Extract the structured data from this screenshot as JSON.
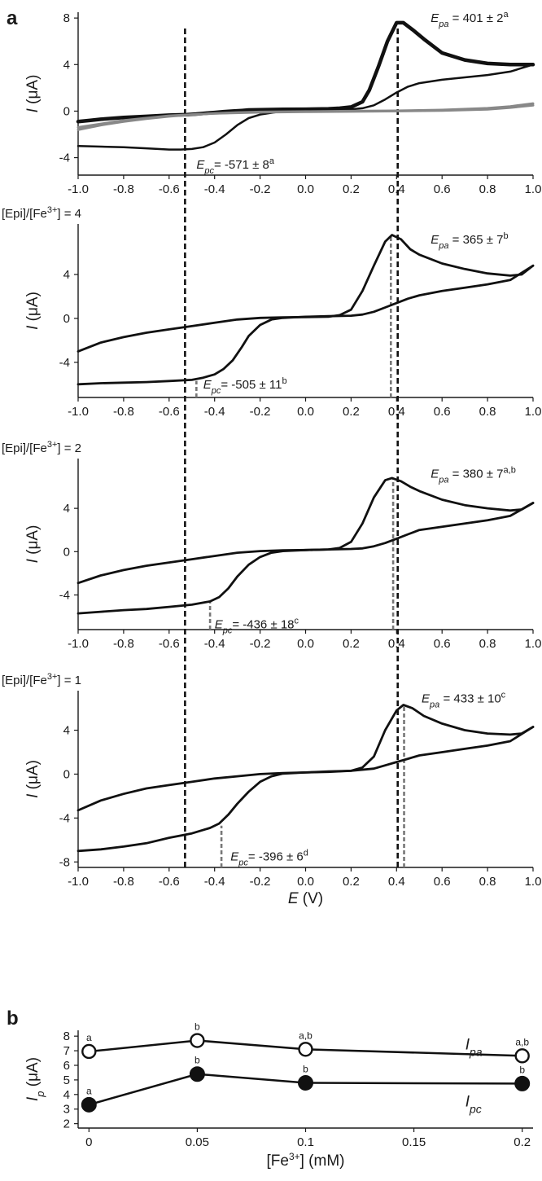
{
  "figure": {
    "panel_a_letter": "a",
    "panel_b_letter": "b"
  },
  "chart_data": [
    {
      "type": "line",
      "panel": "a",
      "condition_label": "",
      "xlabel": "",
      "ylabel_italic": "I",
      "ylabel_unit": "(μA)",
      "xlim": [
        -1.0,
        1.0
      ],
      "ylim": [
        -5.5,
        8.5
      ],
      "yticks": [
        -4,
        0,
        4,
        8
      ],
      "xticks": [
        "-1.0",
        "-0.8",
        "-0.6",
        "-0.4",
        "-0.2",
        "0.0",
        "0.2",
        "0.4",
        "0.6",
        "0.8",
        "1.0"
      ],
      "series": [
        {
          "color": "#111111",
          "width": 4.5,
          "x": [
            -1.0,
            -0.95,
            -0.9,
            -0.8,
            -0.7,
            -0.6,
            -0.52,
            -0.48,
            -0.44,
            -0.4,
            -0.36,
            -0.32,
            -0.28,
            -0.25,
            -0.2,
            -0.1,
            0.0,
            0.1,
            0.15,
            0.2,
            0.25,
            0.28,
            0.32,
            0.36,
            0.4,
            0.43,
            0.47,
            0.52,
            0.6,
            0.7,
            0.8,
            0.9,
            1.0
          ],
          "y": [
            -0.9,
            -0.8,
            -0.7,
            -0.55,
            -0.45,
            -0.35,
            -0.3,
            -0.25,
            -0.18,
            -0.12,
            -0.05,
            0.0,
            0.05,
            0.1,
            0.12,
            0.15,
            0.16,
            0.2,
            0.25,
            0.35,
            0.8,
            1.8,
            3.8,
            6.0,
            7.6,
            7.6,
            7.0,
            6.2,
            5.0,
            4.4,
            4.1,
            4.0,
            4.0
          ]
        },
        {
          "color": "#111111",
          "width": 2.5,
          "x": [
            1.0,
            0.95,
            0.9,
            0.8,
            0.7,
            0.6,
            0.5,
            0.45,
            0.4,
            0.35,
            0.3,
            0.25,
            0.2,
            0.15,
            0.1,
            0.0,
            -0.1,
            -0.2,
            -0.25,
            -0.3,
            -0.35,
            -0.4,
            -0.45,
            -0.5,
            -0.55,
            -0.6,
            -0.7,
            -0.8,
            -0.9,
            -1.0
          ],
          "y": [
            4.0,
            3.7,
            3.4,
            3.1,
            2.9,
            2.7,
            2.4,
            2.1,
            1.6,
            1.0,
            0.5,
            0.25,
            0.15,
            0.1,
            0.08,
            0.05,
            0.0,
            -0.3,
            -0.6,
            -1.2,
            -2.0,
            -2.7,
            -3.1,
            -3.25,
            -3.3,
            -3.3,
            -3.2,
            -3.1,
            -3.05,
            -3.0
          ]
        },
        {
          "color": "#888888",
          "width": 3.0,
          "x": [
            -1.0,
            -0.9,
            -0.8,
            -0.7,
            -0.6,
            -0.5,
            -0.4,
            -0.3,
            -0.2,
            0.0,
            0.2,
            0.4,
            0.6,
            0.8,
            0.9,
            1.0
          ],
          "y": [
            -1.6,
            -1.2,
            -0.9,
            -0.65,
            -0.45,
            -0.3,
            -0.2,
            -0.12,
            -0.07,
            -0.03,
            0.0,
            0.03,
            0.1,
            0.25,
            0.4,
            0.65
          ]
        },
        {
          "color": "#888888",
          "width": 3.0,
          "x": [
            1.0,
            0.9,
            0.8,
            0.6,
            0.4,
            0.2,
            0.0,
            -0.2,
            -0.4,
            -0.6,
            -0.8,
            -1.0
          ],
          "y": [
            0.5,
            0.3,
            0.15,
            0.05,
            0.0,
            -0.03,
            -0.06,
            -0.1,
            -0.2,
            -0.4,
            -0.8,
            -1.4
          ]
        }
      ],
      "annotations": [
        {
          "sym": "E",
          "sub": "pa",
          "text": " = 401 ± 2",
          "sup": "a",
          "x": 0.55,
          "y": 8.0
        },
        {
          "sym": "E",
          "sub": "pc",
          "text": "= -571 ± 8",
          "sup": "a",
          "x": -0.48,
          "y": -4.6
        }
      ],
      "ref_lines": [],
      "ref_line_color": "#777777"
    },
    {
      "type": "line",
      "panel": "a",
      "condition_label": "[Epi]/[Fe3+] = 4",
      "xlabel": "",
      "ylabel_italic": "I",
      "ylabel_unit": "(μA)",
      "xlim": [
        -1.0,
        1.0
      ],
      "ylim": [
        -7.2,
        8.6
      ],
      "yticks": [
        -4,
        0,
        4
      ],
      "xticks": [
        "-1.0",
        "-0.8",
        "-0.6",
        "-0.4",
        "-0.2",
        "0.0",
        "0.2",
        "0.4",
        "0.6",
        "0.8",
        "1.0"
      ],
      "series": [
        {
          "color": "#111111",
          "width": 2.8,
          "x": [
            -1.0,
            -0.9,
            -0.8,
            -0.7,
            -0.6,
            -0.5,
            -0.4,
            -0.3,
            -0.2,
            -0.1,
            0.0,
            0.1,
            0.15,
            0.2,
            0.25,
            0.3,
            0.35,
            0.38,
            0.42,
            0.46,
            0.5,
            0.6,
            0.7,
            0.8,
            0.9,
            0.95,
            1.0
          ],
          "y": [
            -3.0,
            -2.2,
            -1.7,
            -1.3,
            -1.0,
            -0.7,
            -0.4,
            -0.1,
            0.05,
            0.1,
            0.12,
            0.15,
            0.3,
            0.8,
            2.5,
            4.8,
            7.0,
            7.6,
            7.2,
            6.3,
            5.8,
            5.0,
            4.5,
            4.1,
            3.9,
            4.0,
            4.8
          ]
        },
        {
          "color": "#111111",
          "width": 2.8,
          "x": [
            1.0,
            0.9,
            0.8,
            0.7,
            0.6,
            0.5,
            0.45,
            0.4,
            0.35,
            0.3,
            0.25,
            0.2,
            0.1,
            0.0,
            -0.1,
            -0.15,
            -0.2,
            -0.25,
            -0.28,
            -0.32,
            -0.36,
            -0.4,
            -0.45,
            -0.5,
            -0.6,
            -0.7,
            -0.8,
            -0.9,
            -1.0
          ],
          "y": [
            4.8,
            3.5,
            3.1,
            2.8,
            2.5,
            2.1,
            1.8,
            1.4,
            1.0,
            0.6,
            0.35,
            0.25,
            0.2,
            0.15,
            0.05,
            -0.1,
            -0.6,
            -1.6,
            -2.6,
            -3.8,
            -4.6,
            -5.1,
            -5.4,
            -5.6,
            -5.7,
            -5.8,
            -5.85,
            -5.9,
            -6.0
          ]
        }
      ],
      "annotations": [
        {
          "sym": "E",
          "sub": "pa",
          "text": " = 365 ± 7",
          "sup": "b",
          "x": 0.55,
          "y": 7.2
        },
        {
          "sym": "E",
          "sub": "pc",
          "text": "= -505 ± 11",
          "sup": "b",
          "x": -0.45,
          "y": -6.0
        }
      ],
      "ref_lines": [
        {
          "x": -0.48,
          "y0": -7.2,
          "y1": -5.7
        },
        {
          "x": 0.375,
          "y0": -7.2,
          "y1": 7.6
        }
      ],
      "ref_line_color": "#777777"
    },
    {
      "type": "line",
      "panel": "a",
      "condition_label": "[Epi]/[Fe3+] = 2",
      "xlabel": "",
      "ylabel_italic": "I",
      "ylabel_unit": "(μA)",
      "xlim": [
        -1.0,
        1.0
      ],
      "ylim": [
        -7.2,
        8.6
      ],
      "yticks": [
        -4,
        0,
        4
      ],
      "xticks": [
        "-1.0",
        "-0.8",
        "-0.6",
        "-0.4",
        "-0.2",
        "0.0",
        "0.2",
        "0.4",
        "0.6",
        "0.8",
        "1.0"
      ],
      "series": [
        {
          "color": "#111111",
          "width": 2.8,
          "x": [
            -1.0,
            -0.9,
            -0.8,
            -0.7,
            -0.6,
            -0.5,
            -0.4,
            -0.3,
            -0.2,
            -0.1,
            0.0,
            0.1,
            0.15,
            0.2,
            0.25,
            0.3,
            0.35,
            0.38,
            0.42,
            0.46,
            0.5,
            0.6,
            0.7,
            0.8,
            0.9,
            0.95,
            1.0
          ],
          "y": [
            -2.9,
            -2.2,
            -1.7,
            -1.3,
            -1.0,
            -0.7,
            -0.4,
            -0.1,
            0.05,
            0.12,
            0.15,
            0.2,
            0.35,
            0.9,
            2.6,
            5.0,
            6.6,
            6.8,
            6.5,
            6.0,
            5.6,
            4.8,
            4.3,
            4.0,
            3.8,
            3.9,
            4.5
          ]
        },
        {
          "color": "#111111",
          "width": 2.8,
          "x": [
            1.0,
            0.9,
            0.8,
            0.7,
            0.6,
            0.5,
            0.45,
            0.4,
            0.35,
            0.3,
            0.25,
            0.2,
            0.1,
            0.0,
            -0.1,
            -0.15,
            -0.2,
            -0.25,
            -0.3,
            -0.34,
            -0.38,
            -0.42,
            -0.5,
            -0.6,
            -0.7,
            -0.8,
            -0.9,
            -1.0
          ],
          "y": [
            4.5,
            3.3,
            2.9,
            2.6,
            2.3,
            2.0,
            1.6,
            1.2,
            0.8,
            0.5,
            0.3,
            0.25,
            0.2,
            0.15,
            0.05,
            -0.1,
            -0.5,
            -1.2,
            -2.3,
            -3.4,
            -4.2,
            -4.6,
            -4.9,
            -5.1,
            -5.3,
            -5.4,
            -5.55,
            -5.7
          ]
        }
      ],
      "annotations": [
        {
          "sym": "E",
          "sub": "pa",
          "text": " = 380 ± 7",
          "sup": "a,b",
          "x": 0.55,
          "y": 7.2
        },
        {
          "sym": "E",
          "sub": "pc",
          "text": "= -436 ± 18",
          "sup": "c",
          "x": -0.4,
          "y": -6.7
        }
      ],
      "ref_lines": [
        {
          "x": -0.42,
          "y0": -7.2,
          "y1": -4.6
        },
        {
          "x": 0.385,
          "y0": -7.2,
          "y1": 6.8
        }
      ],
      "ref_line_color": "#777777"
    },
    {
      "type": "line",
      "panel": "a",
      "condition_label": "[Epi]/[Fe3+] = 1",
      "xlabel_italic": "E",
      "xlabel_unit": "(V)",
      "ylabel_italic": "I",
      "ylabel_unit": "(μA)",
      "xlim": [
        -1.0,
        1.0
      ],
      "ylim": [
        -8.5,
        7.6
      ],
      "yticks": [
        -8,
        -4,
        0,
        4
      ],
      "xticks": [
        "-1.0",
        "-0.8",
        "-0.6",
        "-0.4",
        "-0.2",
        "0.0",
        "0.2",
        "0.4",
        "0.6",
        "0.8",
        "1.0"
      ],
      "series": [
        {
          "color": "#111111",
          "width": 2.8,
          "x": [
            -1.0,
            -0.9,
            -0.8,
            -0.7,
            -0.6,
            -0.5,
            -0.4,
            -0.3,
            -0.2,
            -0.1,
            0.0,
            0.1,
            0.2,
            0.25,
            0.3,
            0.35,
            0.4,
            0.43,
            0.47,
            0.52,
            0.6,
            0.7,
            0.8,
            0.9,
            0.95,
            1.0
          ],
          "y": [
            -3.3,
            -2.4,
            -1.8,
            -1.3,
            -1.0,
            -0.7,
            -0.4,
            -0.2,
            0.0,
            0.1,
            0.15,
            0.2,
            0.3,
            0.6,
            1.6,
            4.0,
            5.8,
            6.3,
            6.0,
            5.3,
            4.6,
            4.0,
            3.7,
            3.6,
            3.7,
            4.3
          ]
        },
        {
          "color": "#111111",
          "width": 2.8,
          "x": [
            1.0,
            0.9,
            0.8,
            0.7,
            0.6,
            0.5,
            0.45,
            0.4,
            0.35,
            0.3,
            0.2,
            0.1,
            0.0,
            -0.1,
            -0.15,
            -0.2,
            -0.25,
            -0.3,
            -0.34,
            -0.38,
            -0.42,
            -0.5,
            -0.6,
            -0.7,
            -0.8,
            -0.9,
            -1.0
          ],
          "y": [
            4.3,
            3.0,
            2.6,
            2.3,
            2.0,
            1.7,
            1.4,
            1.1,
            0.8,
            0.5,
            0.3,
            0.25,
            0.15,
            0.05,
            -0.2,
            -0.7,
            -1.6,
            -2.7,
            -3.7,
            -4.5,
            -4.9,
            -5.4,
            -5.8,
            -6.3,
            -6.6,
            -6.85,
            -7.0
          ]
        }
      ],
      "annotations": [
        {
          "sym": "E",
          "sub": "pa",
          "text": " = 433 ± 10",
          "sup": "c",
          "x": 0.51,
          "y": 6.9
        },
        {
          "sym": "E",
          "sub": "pc",
          "text": "= -396 ± 6",
          "sup": "d",
          "x": -0.33,
          "y": -7.5
        }
      ],
      "ref_lines": [
        {
          "x": -0.37,
          "y0": -8.5,
          "y1": -4.7
        },
        {
          "x": 0.433,
          "y0": -8.5,
          "y1": 6.3
        }
      ],
      "ref_line_color": "#777777"
    },
    {
      "type": "scatter",
      "panel": "b",
      "xlabel_prefix": "[Fe",
      "xlabel_sup": "3+",
      "xlabel_suffix": "] (mM)",
      "ylabel_italic": "I",
      "ylabel_sub": "p",
      "ylabel_unit": "(μA)",
      "xlim": [
        -0.005,
        0.205
      ],
      "ylim": [
        1.7,
        8.4
      ],
      "xticks": [
        0,
        0.05,
        0.1,
        0.15,
        0.2
      ],
      "xtick_labels": [
        "0",
        "0.05",
        "0.1",
        "0.15",
        "0.2"
      ],
      "yticks": [
        2,
        3,
        4,
        5,
        6,
        7,
        8
      ],
      "series": [
        {
          "name": "Ipa",
          "label_main": "I",
          "label_sub": "pa",
          "marker": "open",
          "x": [
            0,
            0.05,
            0.1,
            0.2
          ],
          "y": [
            6.95,
            7.7,
            7.1,
            6.65
          ],
          "err": [
            0.3,
            0.1,
            0.2,
            0.15
          ],
          "sig": [
            "a",
            "b",
            "a,b",
            "a,b"
          ]
        },
        {
          "name": "Ipc",
          "label_main": "I",
          "label_sub": "pc",
          "marker": "filled",
          "x": [
            0,
            0.05,
            0.1,
            0.2
          ],
          "y": [
            3.3,
            5.4,
            4.8,
            4.75
          ],
          "err": [
            0.15,
            0.15,
            0.2,
            0.35
          ],
          "sig": [
            "a",
            "b",
            "b",
            "b"
          ]
        }
      ]
    }
  ],
  "shared_reference": {
    "x_values": [
      -0.53,
      0.405
    ],
    "color": "#111111"
  }
}
